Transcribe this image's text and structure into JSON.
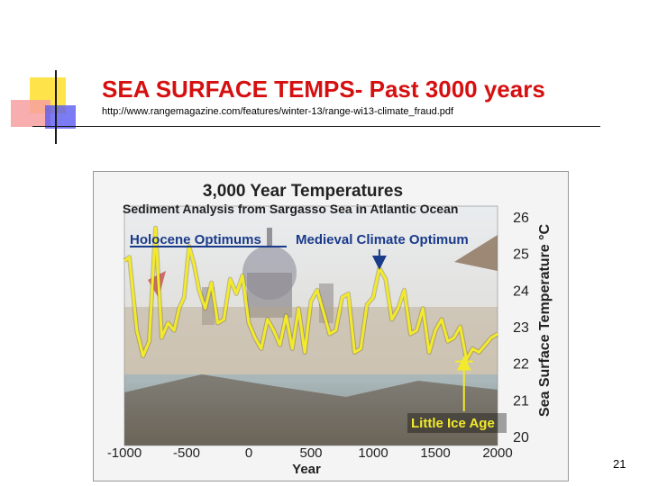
{
  "slide": {
    "title": "SEA SURFACE TEMPS- Past 3000 years",
    "source_url": "http://www.rangemagazine.com/features/winter-13/range-wi13-climate_fraud.pdf",
    "page_number": "21",
    "title_color": "#d61010"
  },
  "chart_data": {
    "type": "line",
    "title": "3,000 Year Temperatures",
    "subtitle": "Sediment Analysis from Sargasso Sea in Atlantic Ocean",
    "xlabel": "Year",
    "ylabel": "Sea Surface Temperature °C",
    "xlim": [
      -1000,
      2000
    ],
    "ylim": [
      20,
      26
    ],
    "x_ticks": [
      -1000,
      -500,
      0,
      500,
      1000,
      1500,
      2000
    ],
    "y_ticks": [
      20,
      21,
      22,
      23,
      24,
      25,
      26
    ],
    "y_axis_side": "right",
    "line_color": "#f2ea2a",
    "annotations": [
      {
        "text": "Holocene Optimums",
        "underlined": true,
        "arrow_to": null
      },
      {
        "text": "Medieval Climate Optimum",
        "arrow_to": {
          "x": 1050,
          "y": 24.6
        }
      },
      {
        "text": "Little Ice Age",
        "arrow_to": {
          "x": 1730,
          "y": 22.1
        }
      }
    ],
    "series": [
      {
        "x": [
          -1000,
          -960,
          -900,
          -850,
          -800,
          -750,
          -700,
          -650,
          -600,
          -560,
          -520,
          -480,
          -440,
          -400,
          -350,
          -300,
          -250,
          -200,
          -150,
          -100,
          -50,
          0,
          50,
          100,
          150,
          200,
          250,
          300,
          350,
          400,
          450,
          500,
          550,
          600,
          650,
          700,
          750,
          800,
          850,
          900,
          950,
          1000,
          1050,
          1100,
          1150,
          1200,
          1250,
          1300,
          1350,
          1400,
          1450,
          1500,
          1550,
          1600,
          1650,
          1700,
          1750,
          1800,
          1850,
          1900,
          1950,
          2000
        ],
        "y": [
          24.8,
          24.9,
          22.9,
          22.2,
          22.6,
          25.7,
          22.7,
          23.1,
          22.9,
          23.5,
          23.8,
          25.2,
          24.7,
          24.0,
          23.5,
          24.2,
          23.1,
          23.2,
          24.3,
          23.9,
          24.4,
          23.1,
          22.7,
          22.4,
          23.2,
          22.9,
          22.5,
          23.3,
          22.4,
          23.5,
          22.3,
          23.7,
          24.0,
          23.4,
          22.8,
          22.9,
          23.8,
          23.9,
          22.3,
          22.4,
          23.6,
          23.8,
          24.6,
          24.3,
          23.2,
          23.5,
          24.0,
          22.8,
          22.9,
          23.5,
          22.3,
          22.9,
          23.2,
          22.6,
          22.7,
          23.0,
          22.1,
          22.4,
          22.3,
          22.5,
          22.7,
          22.8
        ]
      }
    ]
  }
}
